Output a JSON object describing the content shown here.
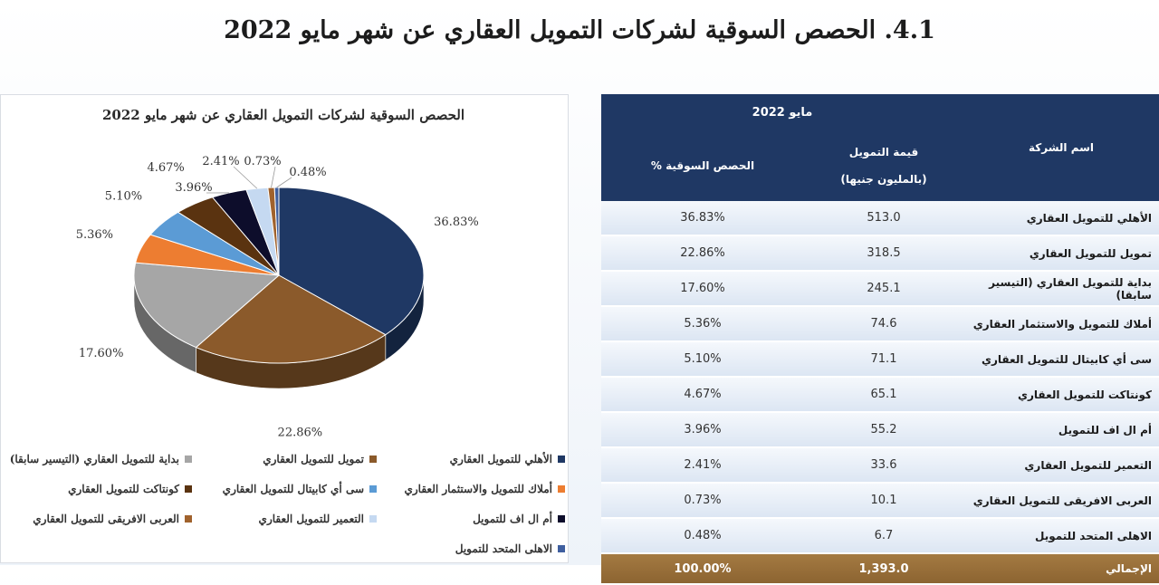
{
  "page": {
    "title": "4.1. الحصص السوقية لشركات التمويل العقاري عن شهر مايو 2022"
  },
  "chart_data": {
    "type": "pie",
    "title": "الحصص السوقية لشركات التمويل العقاري عن شهر مايو 2022",
    "categories": [
      "الأهلي للتمويل العقاري",
      "تمويل للتمويل العقاري",
      "بداية للتمويل العقاري (التيسير سابقا)",
      "أملاك للتمويل والاستثمار العقاري",
      "سى أي كابيتال للتمويل العقاري",
      "كونتاكت للتمويل العقاري",
      "أم ال اف للتمويل",
      "التعمير للتمويل العقاري",
      "العربى الافريقى للتمويل العقاري",
      "الاهلى المتحد للتمويل"
    ],
    "values": [
      36.83,
      22.86,
      17.6,
      5.36,
      5.1,
      4.67,
      3.96,
      2.41,
      0.73,
      0.48
    ],
    "labels": [
      "36.83%",
      "22.86%",
      "17.60%",
      "5.36%",
      "5.10%",
      "4.67%",
      "3.96%",
      "2.41%",
      "0.73%",
      "0.48%"
    ],
    "colors": [
      "#1f3864",
      "#8b5a2b",
      "#a6a6a6",
      "#ed7d31",
      "#5b9bd5",
      "#5a3310",
      "#0d0d2b",
      "#c5d9f1",
      "#a0622d",
      "#3f5f9f"
    ],
    "legend_position": "bottom",
    "style": "3d"
  },
  "table": {
    "header_month": "مايو 2022",
    "col_name": "اسم الشركة",
    "col_value_line1": "قيمة التمويل",
    "col_value_line2": "(بالمليون جنيها)",
    "col_share": "الحصص السوقية %",
    "rows": [
      {
        "name": "الأهلي للتمويل العقاري",
        "value": "513.0",
        "share": "36.83%"
      },
      {
        "name": "تمويل للتمويل العقاري",
        "value": "318.5",
        "share": "22.86%"
      },
      {
        "name": "بداية للتمويل العقاري (التيسير سابقا)",
        "value": "245.1",
        "share": "17.60%"
      },
      {
        "name": "أملاك للتمويل والاستثمار العقاري",
        "value": "74.6",
        "share": "5.36%"
      },
      {
        "name": "سى أي كابيتال للتمويل العقاري",
        "value": "71.1",
        "share": "5.10%"
      },
      {
        "name": "كونتاكت للتمويل العقاري",
        "value": "65.1",
        "share": "4.67%"
      },
      {
        "name": "أم ال اف للتمويل",
        "value": "55.2",
        "share": "3.96%"
      },
      {
        "name": "التعمير للتمويل العقاري",
        "value": "33.6",
        "share": "2.41%"
      },
      {
        "name": "العربى الافريقى للتمويل العقاري",
        "value": "10.1",
        "share": "0.73%"
      },
      {
        "name": "الاهلى المتحد للتمويل",
        "value": "6.7",
        "share": "0.48%"
      }
    ],
    "total": {
      "name": "الإجمالي",
      "value": "1,393.0",
      "share": "100.00%"
    }
  }
}
